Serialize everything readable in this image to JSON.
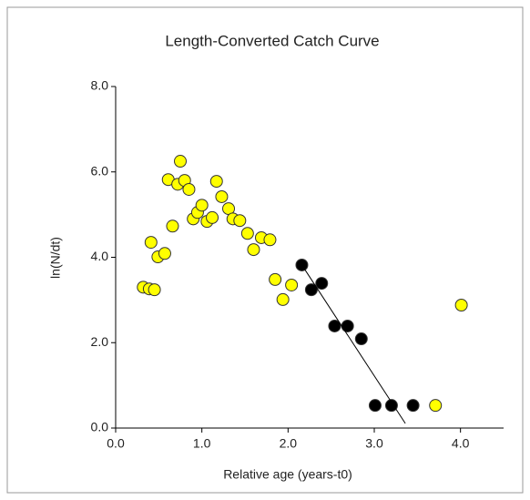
{
  "chart_data": {
    "type": "scatter",
    "title": "Length-Converted Catch Curve",
    "x_label": "Relative age (years-t0)",
    "y_label": "ln(N/dt)",
    "xlim": [
      0,
      4.5
    ],
    "ylim": [
      0,
      8
    ],
    "xticks": [
      {
        "value": 0,
        "label": "0.0"
      },
      {
        "value": 1,
        "label": "1.0"
      },
      {
        "value": 2,
        "label": "2.0"
      },
      {
        "value": 3,
        "label": "3.0"
      },
      {
        "value": 4,
        "label": "4.0"
      }
    ],
    "yticks": [
      {
        "value": 0,
        "label": "0.0"
      },
      {
        "value": 2,
        "label": "2.0"
      },
      {
        "value": 4,
        "label": "4.0"
      },
      {
        "value": 6,
        "label": "6.0"
      },
      {
        "value": 8,
        "label": "8.0"
      }
    ],
    "series": [
      {
        "color": "#ffff00",
        "x": [
          0.32,
          0.39,
          0.45,
          0.41,
          0.49,
          0.57,
          0.61,
          0.66,
          0.72,
          0.75,
          0.8,
          0.85,
          0.9,
          0.95,
          1.0,
          1.06,
          1.12,
          1.17,
          1.23,
          1.31,
          1.36,
          1.44,
          1.53,
          1.6,
          1.69,
          1.79,
          1.85,
          1.94,
          2.04,
          3.71,
          4.01
        ],
        "values": [
          3.3,
          3.26,
          3.24,
          4.35,
          4.01,
          4.09,
          5.82,
          4.73,
          5.71,
          6.25,
          5.8,
          5.59,
          4.9,
          5.05,
          5.22,
          4.84,
          4.93,
          5.78,
          5.42,
          5.14,
          4.9,
          4.86,
          4.56,
          4.18,
          4.46,
          4.41,
          3.48,
          3.01,
          3.35,
          0.53,
          2.88
        ]
      },
      {
        "color": "#000000",
        "x": [
          2.16,
          2.27,
          2.39,
          2.54,
          2.69,
          2.85,
          3.01,
          3.2,
          3.45
        ],
        "values": [
          3.82,
          3.24,
          3.39,
          2.39,
          2.39,
          2.09,
          0.53,
          0.53,
          0.53
        ]
      }
    ],
    "fit_line": {
      "x": [
        2.16,
        3.36
      ],
      "values": [
        3.82,
        0.11
      ]
    }
  }
}
